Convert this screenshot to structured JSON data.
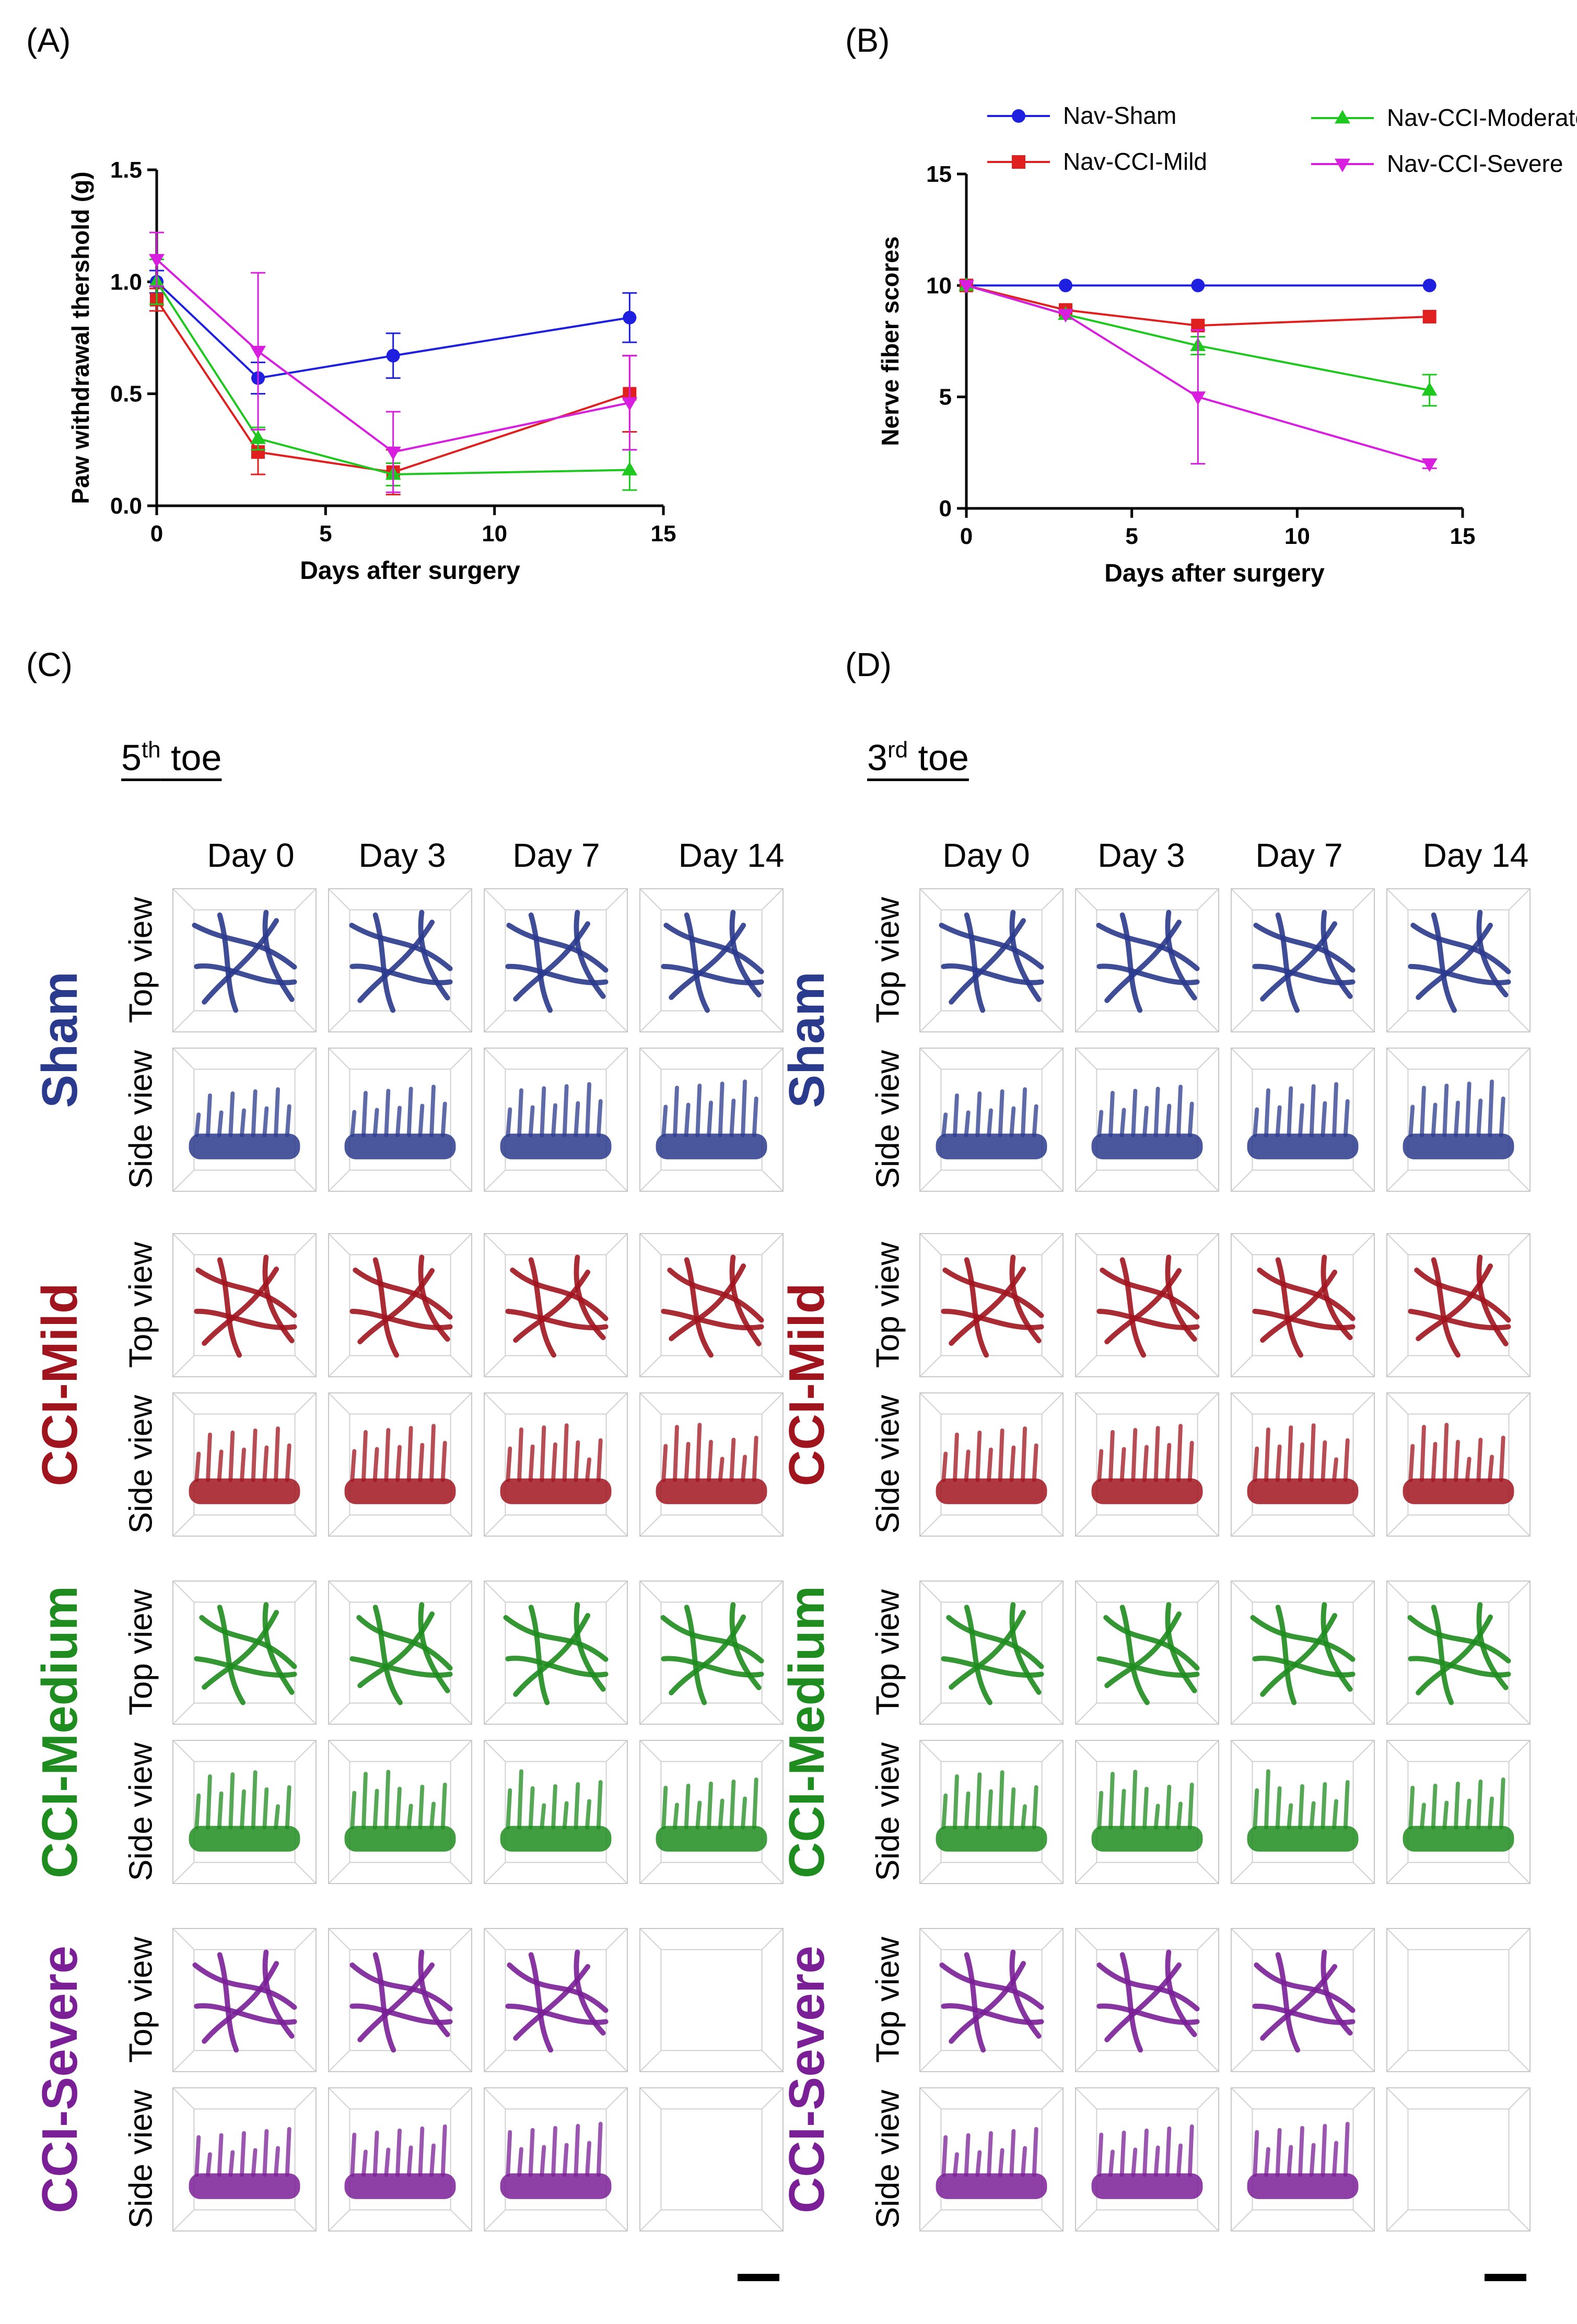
{
  "panels": {
    "A": "(A)",
    "B": "(B)",
    "C": "(C)",
    "D": "(D)"
  },
  "toe_c": {
    "num": "5",
    "sup": "th",
    "word": " toe"
  },
  "toe_d": {
    "num": "3",
    "sup": "rd",
    "word": " toe"
  },
  "days": [
    "Day 0",
    "Day 3",
    "Day 7",
    "Day 14"
  ],
  "views": {
    "top": "Top view",
    "side": "Side view"
  },
  "groups": [
    {
      "name": "Sham",
      "color": "#2a3a8c"
    },
    {
      "name": "CCI-Mild",
      "color": "#a0141e"
    },
    {
      "name": "CCI-Medium",
      "color": "#1e8c1e"
    },
    {
      "name": "CCI-Severe",
      "color": "#7a1f96"
    }
  ],
  "series_colors": {
    "Nav-Sham": "#1f1fe0",
    "Nav-CCI-Mild": "#e01f1f",
    "Nav-CCI-Moderate": "#1fc81f",
    "Nav-CCI-Severe": "#d81fe0"
  },
  "chart_data": [
    {
      "type": "line",
      "panel": "A",
      "title": "",
      "xlabel": "Days after surgery",
      "ylabel": "Paw withdrawal thershold (g)",
      "xlim": [
        0,
        15
      ],
      "ylim": [
        0,
        1.5
      ],
      "xticks": [
        "0",
        "5",
        "10",
        "15"
      ],
      "yticks": [
        "0.0",
        "0.5",
        "1.0",
        "1.5"
      ],
      "x": [
        0,
        3,
        7,
        14
      ],
      "series": [
        {
          "name": "Nav-Sham",
          "marker": "circle",
          "values": [
            1.0,
            0.57,
            0.67,
            0.84
          ],
          "err": [
            0.05,
            0.07,
            0.1,
            0.11
          ]
        },
        {
          "name": "Nav-CCI-Mild",
          "marker": "square",
          "values": [
            0.92,
            0.24,
            0.15,
            0.5
          ],
          "err": [
            0.05,
            0.1,
            0.1,
            0.17
          ]
        },
        {
          "name": "Nav-CCI-Moderate",
          "marker": "triangle",
          "values": [
            1.0,
            0.3,
            0.14,
            0.16
          ],
          "err": [
            0.1,
            0.05,
            0.05,
            0.09
          ]
        },
        {
          "name": "Nav-CCI-Severe",
          "marker": "triangle-down",
          "values": [
            1.1,
            0.69,
            0.24,
            0.46
          ],
          "err": [
            0.12,
            0.35,
            0.18,
            0.21
          ]
        }
      ]
    },
    {
      "type": "line",
      "panel": "B",
      "title": "",
      "xlabel": "Days after surgery",
      "ylabel": "Nerve fiber scores",
      "xlim": [
        0,
        15
      ],
      "ylim": [
        0,
        15
      ],
      "xticks": [
        "0",
        "5",
        "10",
        "15"
      ],
      "yticks": [
        "0",
        "5",
        "10",
        "15"
      ],
      "legend_position": "top",
      "x": [
        0,
        3,
        7,
        14
      ],
      "series": [
        {
          "name": "Nav-Sham",
          "marker": "circle",
          "values": [
            10,
            10,
            10,
            10
          ],
          "err": [
            0,
            0,
            0,
            0
          ]
        },
        {
          "name": "Nav-CCI-Mild",
          "marker": "square",
          "values": [
            10,
            8.9,
            8.2,
            8.6
          ],
          "err": [
            0,
            0,
            0,
            0
          ]
        },
        {
          "name": "Nav-CCI-Moderate",
          "marker": "triangle",
          "values": [
            10,
            8.7,
            7.3,
            5.3
          ],
          "err": [
            0,
            0,
            0.4,
            0.7
          ]
        },
        {
          "name": "Nav-CCI-Severe",
          "marker": "triangle-down",
          "values": [
            10,
            8.7,
            5.0,
            2.0
          ],
          "err": [
            0,
            0,
            3.0,
            0.2
          ]
        }
      ]
    }
  ]
}
